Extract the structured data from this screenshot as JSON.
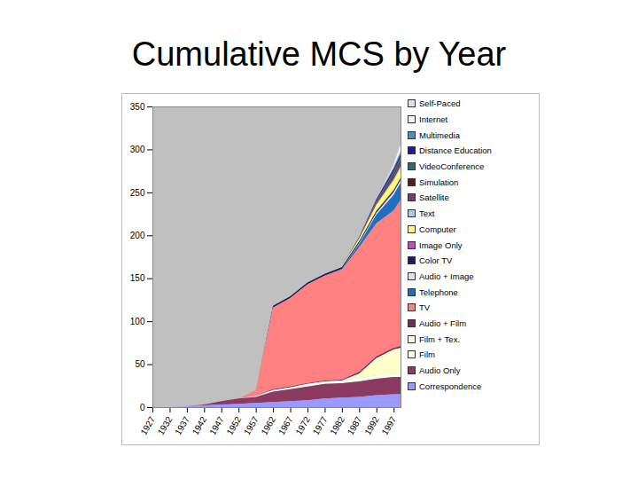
{
  "chart_data": {
    "type": "area",
    "title": "Cumulative MCS by Year",
    "stacked": true,
    "legend": "right",
    "x": [
      1927,
      1932,
      1937,
      1942,
      1947,
      1952,
      1957,
      1962,
      1967,
      1972,
      1977,
      1982,
      1987,
      1992,
      1997,
      1999
    ],
    "xlim": [
      1927,
      1999
    ],
    "xticks": [
      1927,
      1932,
      1937,
      1942,
      1947,
      1952,
      1957,
      1962,
      1967,
      1972,
      1977,
      1982,
      1987,
      1992,
      1997
    ],
    "ylim": [
      0,
      350
    ],
    "yticks": [
      0,
      50,
      100,
      150,
      200,
      250,
      300,
      350
    ],
    "series": [
      {
        "name": "Self-Paced",
        "color": "#d9e3f0",
        "values": [
          0,
          0,
          0,
          0,
          0,
          0,
          0,
          0,
          0,
          0,
          0,
          0,
          0,
          0,
          1,
          2
        ]
      },
      {
        "name": "Internet",
        "color": "#f4f4f4",
        "values": [
          0,
          0,
          0,
          0,
          0,
          0,
          0,
          0,
          0,
          0,
          0,
          0,
          0,
          0,
          3,
          8
        ]
      },
      {
        "name": "Multimedia",
        "color": "#4a90c8",
        "values": [
          0,
          0,
          0,
          0,
          0,
          0,
          0,
          0,
          0,
          0,
          0,
          0,
          0,
          0,
          2,
          3
        ]
      },
      {
        "name": "Distance Education",
        "color": "#1a1aa0",
        "values": [
          0,
          0,
          0,
          0,
          0,
          0,
          0,
          0,
          0,
          0,
          0,
          0,
          1,
          2,
          3,
          3
        ]
      },
      {
        "name": "VideoConference",
        "color": "#2f6b6b",
        "values": [
          0,
          0,
          0,
          0,
          0,
          0,
          0,
          0,
          0,
          0,
          0,
          0,
          0,
          1,
          3,
          4
        ]
      },
      {
        "name": "Simulation",
        "color": "#5a1a1a",
        "values": [
          0,
          0,
          0,
          0,
          0,
          0,
          0,
          0,
          0,
          0,
          0,
          0,
          0,
          1,
          2,
          2
        ]
      },
      {
        "name": "Satellite",
        "color": "#7a3a6a",
        "values": [
          0,
          0,
          0,
          0,
          0,
          0,
          0,
          0,
          0,
          0,
          0,
          0,
          1,
          2,
          4,
          5
        ]
      },
      {
        "name": "Text",
        "color": "#a0d0e8",
        "values": [
          0,
          0,
          0,
          0,
          0,
          0,
          0,
          0,
          0,
          0,
          0,
          0,
          0,
          1,
          2,
          2
        ]
      },
      {
        "name": "Computer",
        "color": "#ffff66",
        "values": [
          0,
          0,
          0,
          0,
          0,
          0,
          0,
          0,
          0,
          0,
          0,
          1,
          3,
          6,
          10,
          11
        ]
      },
      {
        "name": "Image Only",
        "color": "#cc44cc",
        "values": [
          0,
          0,
          0,
          0,
          0,
          0,
          0,
          0,
          0,
          0,
          0,
          0,
          0,
          1,
          1,
          1
        ]
      },
      {
        "name": "Color TV",
        "color": "#1a1a60",
        "values": [
          0,
          0,
          0,
          0,
          0,
          0,
          0,
          2,
          2,
          2,
          2,
          2,
          2,
          2,
          2,
          2
        ]
      },
      {
        "name": "Audio + Image",
        "color": "#e0e0f0",
        "values": [
          0,
          0,
          0,
          0,
          0,
          0,
          0,
          0,
          0,
          0,
          0,
          0,
          1,
          2,
          3,
          3
        ]
      },
      {
        "name": "Telephone",
        "color": "#1f6fbf",
        "values": [
          0,
          0,
          0,
          0,
          0,
          0,
          0,
          0,
          0,
          0,
          0,
          1,
          4,
          10,
          18,
          20
        ]
      },
      {
        "name": "TV",
        "color": "#ff8080",
        "values": [
          0,
          0,
          0,
          0,
          0,
          0,
          7,
          95,
          103,
          115,
          122,
          128,
          145,
          155,
          160,
          170
        ]
      },
      {
        "name": "Audio + Film",
        "color": "#7a2a5a",
        "values": [
          0,
          0,
          0,
          0,
          0,
          0,
          0,
          1,
          1,
          1,
          1,
          1,
          2,
          2,
          2,
          2
        ]
      },
      {
        "name": "Film + Tex.",
        "color": "#ffffcc",
        "values": [
          0,
          0,
          0,
          0,
          0,
          0,
          0,
          0,
          0,
          0,
          0,
          0,
          5,
          20,
          28,
          30
        ]
      },
      {
        "name": "Film",
        "color": "#fffff0",
        "values": [
          0,
          0,
          0,
          0,
          0,
          0,
          1,
          2,
          2,
          3,
          3,
          3,
          4,
          4,
          4,
          4
        ]
      },
      {
        "name": "Audio Only",
        "color": "#8b3a62",
        "values": [
          0,
          0,
          0,
          1,
          4,
          6,
          7,
          12,
          14,
          16,
          17,
          17,
          18,
          19,
          20,
          20
        ]
      },
      {
        "name": "Correspondence",
        "color": "#9999ff",
        "values": [
          0,
          0,
          1,
          2,
          3,
          4,
          5,
          6,
          7,
          8,
          10,
          11,
          12,
          14,
          15,
          15
        ]
      }
    ]
  }
}
